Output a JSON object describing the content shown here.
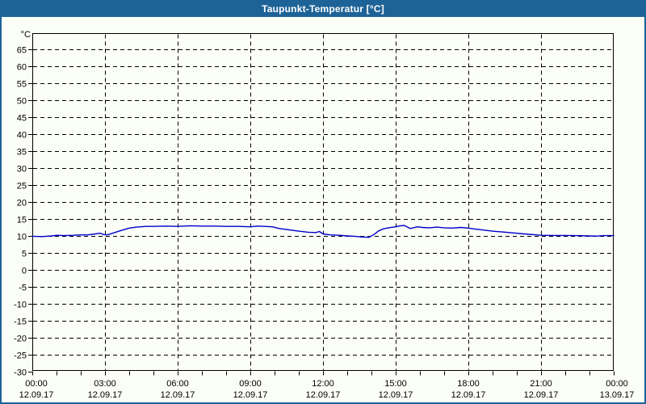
{
  "window": {
    "title": "Taupunkt-Temperatur [°C]"
  },
  "colors": {
    "titlebar_bg": "#1e6397",
    "titlebar_text": "#ffffff",
    "window_border": "#1e6397",
    "page_bg": "#fbfdf7",
    "grid": "#000000",
    "axis": "#000000",
    "label": "#000000",
    "series_line": "#0000cd"
  },
  "chart_data": {
    "type": "line",
    "title": "Taupunkt-Temperatur [°C]",
    "grid": true,
    "legend": "none",
    "y_axis": {
      "unit": "°C",
      "min": -30,
      "max": 70,
      "tick_step": 5,
      "ticks": [
        65,
        60,
        55,
        50,
        45,
        40,
        35,
        30,
        25,
        20,
        15,
        10,
        5,
        0,
        -5,
        -10,
        -15,
        -20,
        -25,
        -30
      ]
    },
    "x_axis": {
      "minor_tick_hours": 1,
      "major_tick_hours": 3,
      "start": "12.09.17 00:00",
      "end": "13.09.17 00:00",
      "labels": [
        {
          "hour": 0,
          "time": "00:00",
          "date": "12.09.17"
        },
        {
          "hour": 3,
          "time": "03:00",
          "date": "12.09.17"
        },
        {
          "hour": 6,
          "time": "06:00",
          "date": "12.09.17"
        },
        {
          "hour": 9,
          "time": "09:00",
          "date": "12.09.17"
        },
        {
          "hour": 12,
          "time": "12:00",
          "date": "12.09.17"
        },
        {
          "hour": 15,
          "time": "15:00",
          "date": "12.09.17"
        },
        {
          "hour": 18,
          "time": "18:00",
          "date": "12.09.17"
        },
        {
          "hour": 21,
          "time": "21:00",
          "date": "12.09.17"
        },
        {
          "hour": 24,
          "time": "00:00",
          "date": "13.09.17"
        }
      ]
    },
    "series": [
      {
        "name": "Taupunkt-Temperatur",
        "unit": "°C",
        "color": "#0000cd",
        "points_hour_value": [
          [
            0.0,
            9.9
          ],
          [
            0.4,
            9.8
          ],
          [
            0.8,
            10.0
          ],
          [
            1.0,
            10.2
          ],
          [
            1.3,
            10.1
          ],
          [
            1.7,
            10.2
          ],
          [
            2.0,
            10.3
          ],
          [
            2.3,
            10.3
          ],
          [
            2.6,
            10.6
          ],
          [
            2.8,
            10.8
          ],
          [
            2.95,
            10.4
          ],
          [
            3.1,
            10.3
          ],
          [
            3.4,
            11.0
          ],
          [
            3.7,
            11.7
          ],
          [
            4.0,
            12.3
          ],
          [
            4.3,
            12.6
          ],
          [
            4.7,
            12.8
          ],
          [
            5.0,
            12.8
          ],
          [
            5.5,
            12.9
          ],
          [
            6.0,
            12.8
          ],
          [
            6.5,
            13.0
          ],
          [
            7.0,
            12.9
          ],
          [
            7.5,
            12.9
          ],
          [
            8.0,
            12.8
          ],
          [
            8.5,
            12.8
          ],
          [
            9.0,
            12.7
          ],
          [
            9.3,
            12.9
          ],
          [
            9.6,
            12.8
          ],
          [
            9.9,
            12.7
          ],
          [
            10.2,
            12.2
          ],
          [
            10.6,
            11.8
          ],
          [
            11.0,
            11.4
          ],
          [
            11.4,
            11.1
          ],
          [
            11.7,
            11.0
          ],
          [
            11.85,
            11.3
          ],
          [
            12.0,
            10.6
          ],
          [
            12.3,
            10.3
          ],
          [
            12.7,
            10.2
          ],
          [
            13.0,
            10.0
          ],
          [
            13.3,
            9.9
          ],
          [
            13.6,
            9.7
          ],
          [
            13.9,
            9.6
          ],
          [
            14.1,
            10.4
          ],
          [
            14.3,
            11.5
          ],
          [
            14.5,
            12.1
          ],
          [
            14.7,
            12.4
          ],
          [
            15.0,
            12.7
          ],
          [
            15.2,
            13.0
          ],
          [
            15.35,
            13.1
          ],
          [
            15.6,
            12.2
          ],
          [
            15.9,
            12.7
          ],
          [
            16.1,
            12.5
          ],
          [
            16.4,
            12.4
          ],
          [
            16.7,
            12.6
          ],
          [
            17.0,
            12.4
          ],
          [
            17.3,
            12.3
          ],
          [
            17.7,
            12.5
          ],
          [
            18.0,
            12.3
          ],
          [
            18.3,
            12.0
          ],
          [
            19.0,
            11.4
          ],
          [
            19.7,
            11.0
          ],
          [
            20.3,
            10.6
          ],
          [
            20.8,
            10.3
          ],
          [
            21.0,
            10.2
          ],
          [
            21.5,
            10.15
          ],
          [
            22.0,
            10.15
          ],
          [
            22.5,
            10.1
          ],
          [
            23.0,
            10.0
          ],
          [
            23.3,
            9.95
          ],
          [
            23.6,
            10.1
          ],
          [
            24.0,
            10.1
          ]
        ]
      }
    ]
  }
}
